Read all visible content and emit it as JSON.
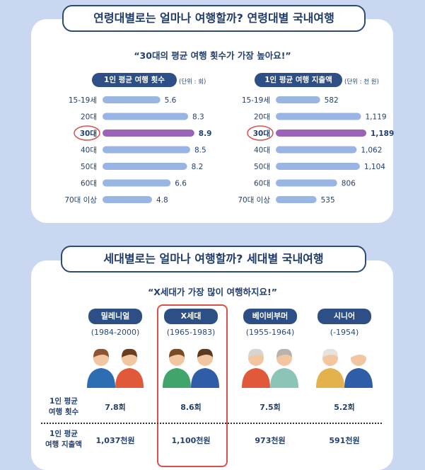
{
  "section1": {
    "title": "연령대별로는 얼마나 여행할까? 연령대별 국내여행",
    "subtitle": "“30대의 평균 여행 횟수가 가장 높아요!”"
  },
  "section2": {
    "title": "세대별로는 얼마나 여행할까? 세대별 국내여행",
    "subtitle": "“X세대가 가장 많이 여행하지요!”",
    "generations": [
      {
        "name": "밀레니얼",
        "years": "(1984-2000)",
        "trips": "7.8회",
        "spend": "1,037천원"
      },
      {
        "name": "X세대",
        "years": "(1965-1983)",
        "trips": "8.6회",
        "spend": "1,100천원"
      },
      {
        "name": "베이비부머",
        "years": "(1955-1964)",
        "trips": "7.5회",
        "spend": "973천원"
      },
      {
        "name": "시니어",
        "years": "(-1954)",
        "trips": "5.2회",
        "spend": "591천원"
      }
    ],
    "row_trips": [
      "1인 평균",
      "여행 횟수"
    ],
    "row_spend": [
      "1인 평균",
      "여행 지출액"
    ]
  },
  "colors": {
    "bar": "#99b5e4",
    "highlight_bar": "#9a63b8",
    "circle": "#d9504a"
  },
  "chart_data": [
    {
      "type": "bar",
      "orientation": "horizontal",
      "title": "1인 평균 여행 횟수",
      "unit_label": "(단위 : 회)",
      "categories": [
        "15-19세",
        "20대",
        "30대",
        "40대",
        "50대",
        "60대",
        "70대 이상"
      ],
      "values": [
        5.6,
        8.3,
        8.9,
        8.5,
        8.2,
        6.6,
        4.8
      ],
      "value_labels": [
        "5.6",
        "8.3",
        "8.9",
        "8.5",
        "8.2",
        "6.6",
        "4.8"
      ],
      "highlight": "30대",
      "xlim": [
        0,
        9.6
      ]
    },
    {
      "type": "bar",
      "orientation": "horizontal",
      "title": "1인 평균 여행 지출액",
      "unit_label": "(단위 : 천 원)",
      "categories": [
        "15-19세",
        "20대",
        "30대",
        "40대",
        "50대",
        "60대",
        "70대 이상"
      ],
      "values": [
        582,
        1119,
        1189,
        1062,
        1104,
        806,
        535
      ],
      "value_labels": [
        "582",
        "1,119",
        "1,189",
        "1,062",
        "1,104",
        "806",
        "535"
      ],
      "highlight": "30대",
      "xlim": [
        0,
        1300
      ]
    }
  ]
}
